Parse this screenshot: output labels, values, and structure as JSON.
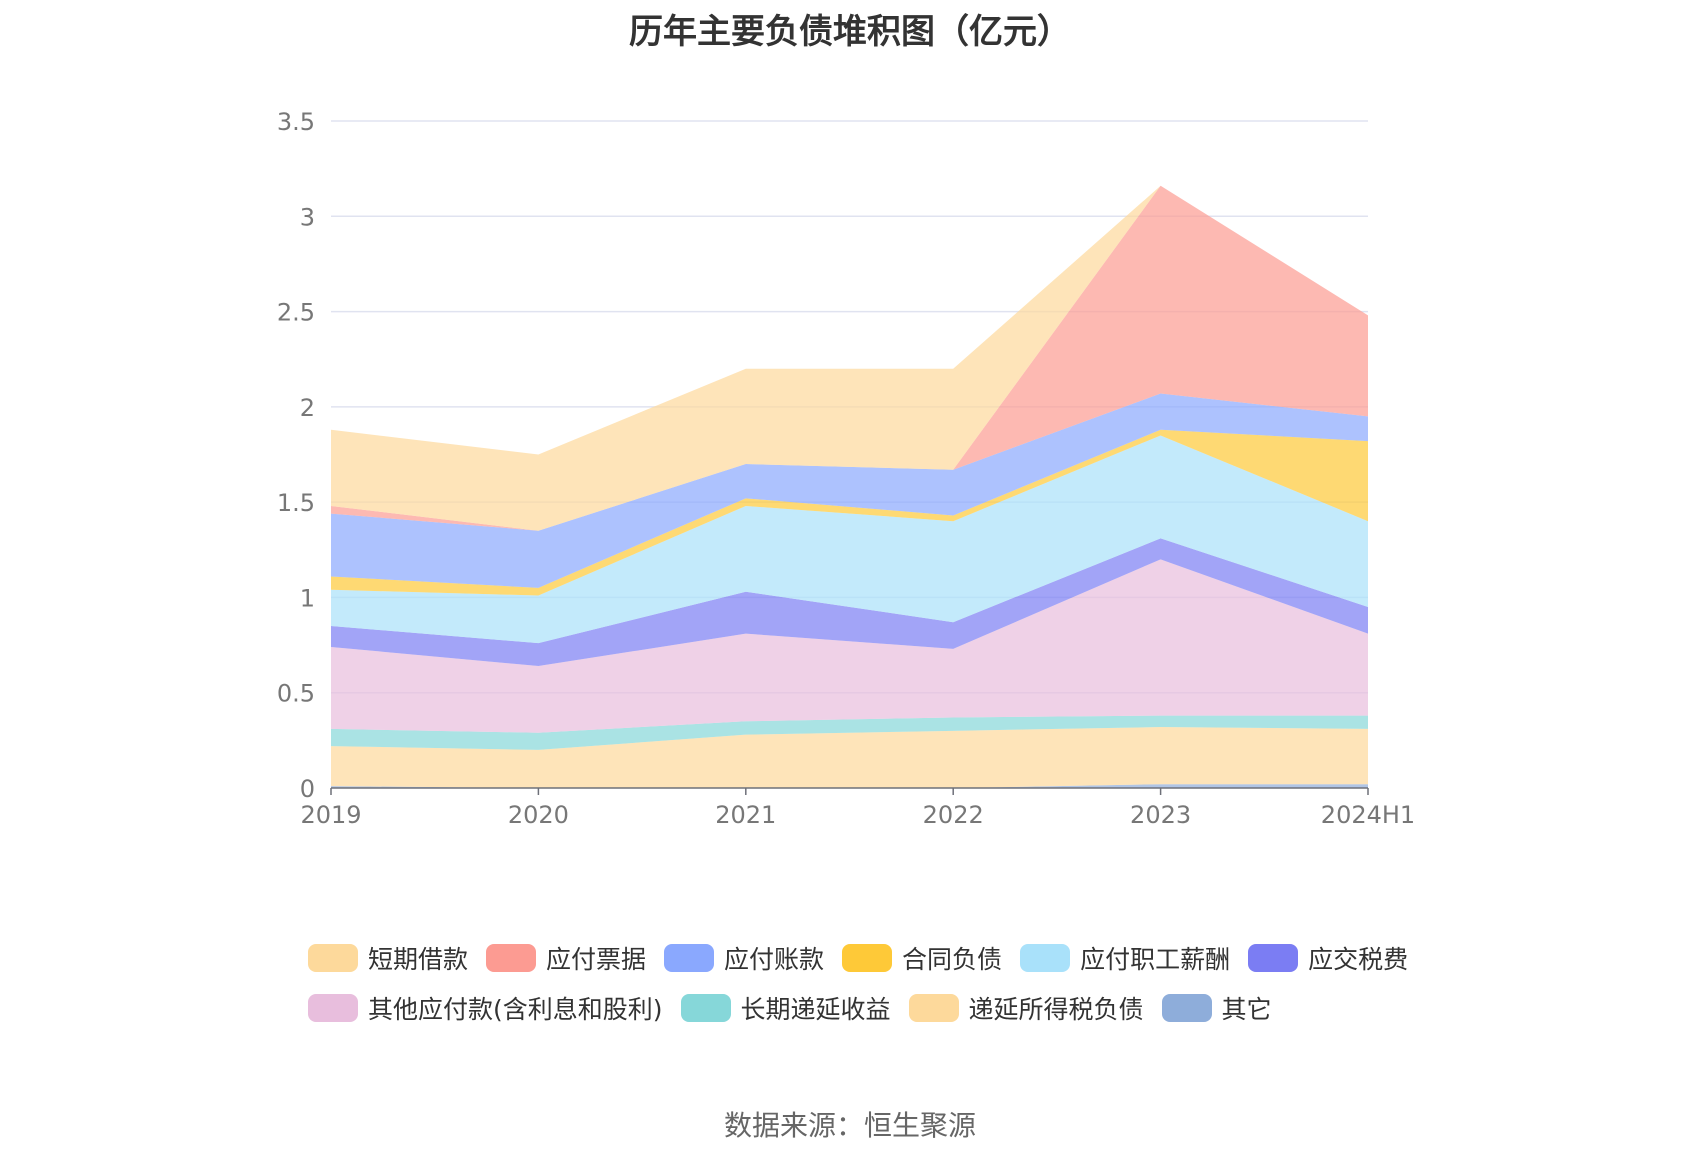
{
  "chart_data": {
    "type": "area",
    "stacked": true,
    "title": "历年主要负债堆积图（亿元）",
    "categories": [
      "2019",
      "2020",
      "2021",
      "2022",
      "2023",
      "2024H1"
    ],
    "ylim": [
      0,
      3.5
    ],
    "yticks": [
      "0",
      "0.5",
      "1",
      "1.5",
      "2",
      "2.5",
      "3",
      "3.5"
    ],
    "grid": true,
    "legend_position": "bottom",
    "series": [
      {
        "name": "短期借款",
        "color": "#FDD99B",
        "values": [
          0.4,
          0.4,
          0.5,
          0.53,
          0.0,
          0.0
        ]
      },
      {
        "name": "应付票据",
        "color": "#FC9B92",
        "values": [
          0.04,
          0.0,
          0.0,
          0.0,
          1.09,
          0.53
        ]
      },
      {
        "name": "应付账款",
        "color": "#8AA8FE",
        "values": [
          0.33,
          0.3,
          0.18,
          0.24,
          0.19,
          0.13
        ]
      },
      {
        "name": "合同负债",
        "color": "#FEC938",
        "values": [
          0.07,
          0.04,
          0.04,
          0.03,
          0.03,
          0.42
        ]
      },
      {
        "name": "应付职工薪酬",
        "color": "#A9E1FA",
        "values": [
          0.19,
          0.25,
          0.45,
          0.53,
          0.54,
          0.45
        ]
      },
      {
        "name": "应交税费",
        "color": "#7B7DF3",
        "values": [
          0.11,
          0.12,
          0.22,
          0.14,
          0.11,
          0.14
        ]
      },
      {
        "name": "其他应付款(含利息和股利)",
        "color": "#E8BEDD",
        "values": [
          0.43,
          0.35,
          0.46,
          0.36,
          0.82,
          0.43
        ]
      },
      {
        "name": "长期递延收益",
        "color": "#86D7D9",
        "values": [
          0.09,
          0.09,
          0.07,
          0.07,
          0.06,
          0.07
        ]
      },
      {
        "name": "递延所得税负债",
        "color": "#FDD99B",
        "values": [
          0.21,
          0.2,
          0.28,
          0.3,
          0.3,
          0.29
        ]
      },
      {
        "name": "其它",
        "color": "#8EADDA",
        "values": [
          0.01,
          0.0,
          0.0,
          0.0,
          0.02,
          0.02
        ]
      }
    ]
  },
  "source_text": "数据来源：恒生聚源"
}
